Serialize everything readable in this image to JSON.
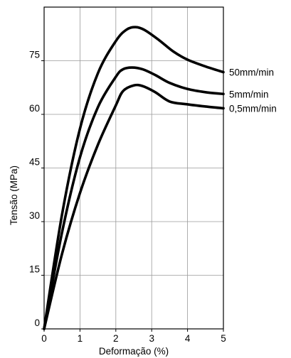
{
  "chart_data": {
    "type": "line",
    "title": "",
    "xlabel": "Deformação (%)",
    "ylabel": "Tensão (MPa)",
    "xlim": [
      0,
      5
    ],
    "ylim": [
      0,
      90
    ],
    "x_ticks": [
      0,
      1,
      2,
      3,
      4,
      5
    ],
    "y_ticks": [
      0,
      15,
      30,
      45,
      60,
      75
    ],
    "grid": true,
    "legend": "labels at right end of each line",
    "series": [
      {
        "name": "50mm/min",
        "points": [
          [
            0,
            0
          ],
          [
            0.5,
            32
          ],
          [
            1,
            56
          ],
          [
            1.5,
            71.5
          ],
          [
            2,
            80.5
          ],
          [
            2.3,
            83.7
          ],
          [
            2.55,
            84.4
          ],
          [
            2.8,
            83.6
          ],
          [
            3.2,
            80.8
          ],
          [
            3.6,
            77.6
          ],
          [
            4,
            75.3
          ],
          [
            4.5,
            73.4
          ],
          [
            5,
            71.8
          ]
        ]
      },
      {
        "name": "5mm/min",
        "points": [
          [
            0,
            0
          ],
          [
            0.5,
            27
          ],
          [
            1,
            48
          ],
          [
            1.5,
            62
          ],
          [
            2,
            70.5
          ],
          [
            2.2,
            72.6
          ],
          [
            2.45,
            73.1
          ],
          [
            2.75,
            72.6
          ],
          [
            3.1,
            71
          ],
          [
            3.5,
            68.8
          ],
          [
            4,
            67.1
          ],
          [
            4.5,
            66.2
          ],
          [
            5,
            65.7
          ]
        ]
      },
      {
        "name": "0,5mm/min",
        "points": [
          [
            0,
            0
          ],
          [
            0.5,
            21
          ],
          [
            1,
            38
          ],
          [
            1.5,
            51.5
          ],
          [
            2,
            62.5
          ],
          [
            2.2,
            66.5
          ],
          [
            2.5,
            68.1
          ],
          [
            2.75,
            67.9
          ],
          [
            3.1,
            66.2
          ],
          [
            3.5,
            63.6
          ],
          [
            4,
            62.8
          ],
          [
            4.5,
            62.2
          ],
          [
            5,
            61.7
          ]
        ]
      }
    ]
  }
}
